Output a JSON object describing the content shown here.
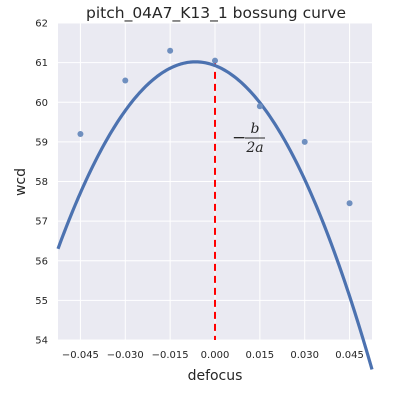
{
  "chart_data": {
    "type": "scatter",
    "title": "pitch_04A7_K13_1 bossung curve",
    "xlabel": "defocus",
    "ylabel": "wcd",
    "xlim": [
      -0.0525,
      0.0525
    ],
    "ylim": [
      54,
      62
    ],
    "x_ticks": [
      -0.045,
      -0.03,
      -0.015,
      0.0,
      0.015,
      0.03,
      0.045
    ],
    "x_tick_labels": [
      "−0.045",
      "−0.030",
      "−0.015",
      "0.000",
      "0.015",
      "0.030",
      "0.045"
    ],
    "y_ticks": [
      54,
      55,
      56,
      57,
      58,
      59,
      60,
      61,
      62
    ],
    "y_tick_labels": [
      "54",
      "55",
      "56",
      "57",
      "58",
      "59",
      "60",
      "61",
      "62"
    ],
    "grid": true,
    "series": [
      {
        "kind": "points",
        "x": [
          -0.045,
          -0.03,
          -0.015,
          0.0,
          0.015,
          0.03,
          0.045
        ],
        "y": [
          59.2,
          60.55,
          61.3,
          61.05,
          59.9,
          59.0,
          57.45
        ]
      },
      {
        "kind": "fit",
        "model": "quadratic",
        "vertex_x": -0.0065,
        "vertex_y": 61.02,
        "curvature": -2230
      }
    ],
    "vertical_line": {
      "x": 0.0,
      "style": "dashed",
      "color": "#ff0000"
    },
    "annotation": {
      "text_minus": "−",
      "numerator": "b",
      "denominator": "2a",
      "x": 0.015,
      "y": 59.2
    },
    "colors": {
      "background": "#eaeaf2",
      "grid": "#ffffff",
      "points": "#6f8fbf",
      "fit_line": "#4c72b0",
      "vline": "#ff0000"
    }
  }
}
